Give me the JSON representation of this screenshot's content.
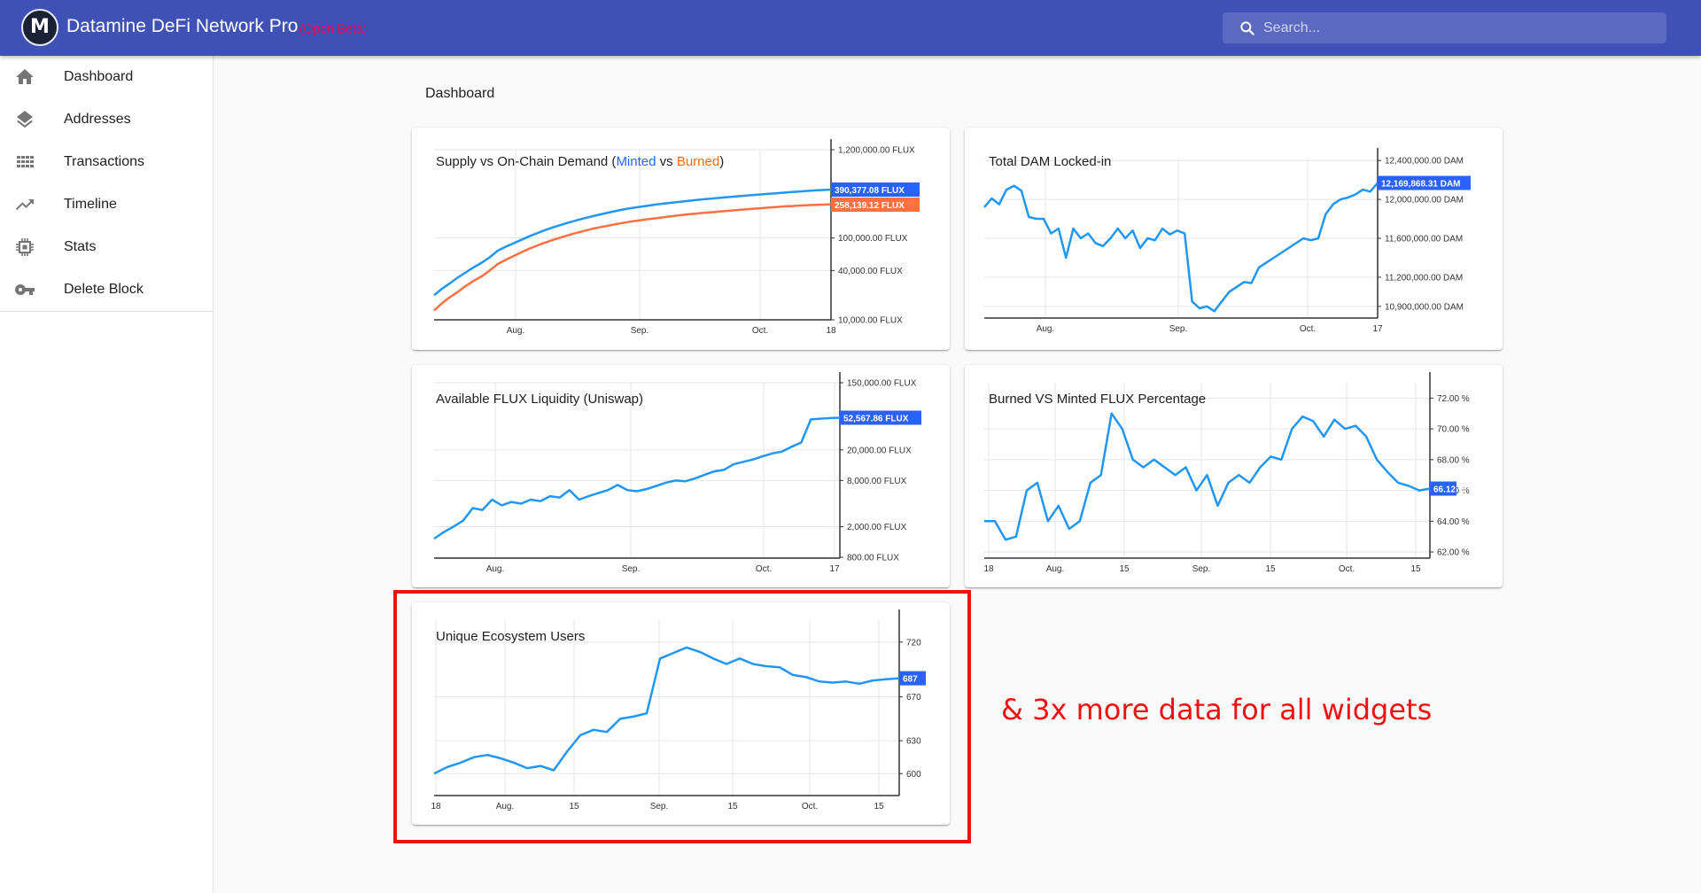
{
  "app": {
    "title": "Datamine DeFi Network Pro",
    "beta": "(Open Beta)",
    "logo": "M"
  },
  "search": {
    "placeholder": "Search..."
  },
  "sidebar": {
    "items": [
      {
        "label": "Dashboard",
        "icon": "home-icon"
      },
      {
        "label": "Addresses",
        "icon": "layers-icon"
      },
      {
        "label": "Transactions",
        "icon": "grid-icon"
      },
      {
        "label": "Timeline",
        "icon": "trending-up-icon"
      },
      {
        "label": "Stats",
        "icon": "chip-icon"
      },
      {
        "label": "Delete Block",
        "icon": "key-icon"
      }
    ]
  },
  "page": {
    "title": "Dashboard"
  },
  "colors": {
    "primary": "#3f51b5",
    "minted": "#2196f3",
    "burned": "#ff7043",
    "label_bg": "#2962ff",
    "beta": "#f50057",
    "highlight": "#ee1111"
  },
  "cards": {
    "supply": {
      "title_prefix": "Supply vs On-Chain Demand (",
      "minted": "Minted",
      "mid": " vs ",
      "burned": "Burned",
      "title_suffix": ")"
    },
    "dam": {
      "title": "Total DAM Locked-in"
    },
    "liquidity": {
      "title": "Available FLUX Liquidity (Uniswap)"
    },
    "ratio": {
      "title": "Burned VS Minted FLUX Percentage"
    },
    "users": {
      "title": "Unique Ecosystem Users"
    }
  },
  "annotation": {
    "text": "& 3x more data for all widgets"
  },
  "chart_data": [
    {
      "type": "line",
      "scale": "log",
      "title": "Supply vs On-Chain Demand (Minted vs Burned)",
      "x_ticks": [
        "Aug.",
        "Sep.",
        "Oct.",
        "18"
      ],
      "y_ticks": [
        "1,200,000.00 FLUX",
        "100,000.00 FLUX",
        "40,000.00 FLUX",
        "10,000.00 FLUX"
      ],
      "series": [
        {
          "name": "Minted",
          "color": "#2196f3",
          "last_label": "390,377.08 FLUX",
          "values": [
            20000,
            24000,
            28000,
            33000,
            38000,
            44000,
            50000,
            58000,
            70000,
            78000,
            86000,
            95000,
            105000,
            115000,
            125000,
            135000,
            145000,
            155000,
            165000,
            175000,
            185000,
            195000,
            205000,
            215000,
            225000,
            233000,
            241000,
            249000,
            257000,
            264000,
            271000,
            278000,
            285000,
            292000,
            298000,
            304000,
            310000,
            316000,
            322000,
            328000,
            334000,
            340000,
            346000,
            352000,
            358000,
            364000,
            370000,
            376000,
            382000,
            386000,
            390377
          ]
        },
        {
          "name": "Burned",
          "color": "#ff7043",
          "last_label": "258,139.12 FLUX",
          "values": [
            13000,
            16000,
            19000,
            22000,
            26000,
            30000,
            34000,
            40000,
            48000,
            54000,
            60000,
            67000,
            74000,
            81000,
            88000,
            95000,
            102000,
            109000,
            116000,
            123000,
            130000,
            136000,
            142000,
            148000,
            154000,
            160000,
            165000,
            170000,
            175000,
            180000,
            185000,
            190000,
            195000,
            199000,
            203000,
            207000,
            211000,
            215000,
            219000,
            223000,
            227000,
            231000,
            235000,
            239000,
            243000,
            246000,
            249000,
            252000,
            254000,
            256000,
            258139
          ]
        }
      ]
    },
    {
      "type": "line",
      "title": "Total DAM Locked-in",
      "x_ticks": [
        "Aug.",
        "Sep.",
        "Oct.",
        "17"
      ],
      "y_ticks": [
        "12,400,000.00 DAM",
        "12,000,000.00 DAM",
        "11,600,000.00 DAM",
        "11,200,000.00 DAM",
        "10,900,000.00 DAM"
      ],
      "last_label": "12,169,868.31 DAM",
      "values": [
        11920000,
        12010000,
        11950000,
        12100000,
        12140000,
        12090000,
        11820000,
        11800000,
        11800000,
        11650000,
        11700000,
        11400000,
        11700000,
        11600000,
        11650000,
        11550000,
        11520000,
        11600000,
        11700000,
        11600000,
        11680000,
        11500000,
        11600000,
        11580000,
        11700000,
        11640000,
        11680000,
        11650000,
        10950000,
        10880000,
        10900000,
        10850000,
        10950000,
        11050000,
        11100000,
        11150000,
        11140000,
        11300000,
        11350000,
        11400000,
        11450000,
        11500000,
        11550000,
        11600000,
        11580000,
        11600000,
        11850000,
        11950000,
        12000000,
        12020000,
        12050000,
        12100000,
        12080000,
        12169868
      ]
    },
    {
      "type": "line",
      "scale": "log",
      "title": "Available FLUX Liquidity (Uniswap)",
      "x_ticks": [
        "Aug.",
        "Sep.",
        "Oct.",
        "17"
      ],
      "y_ticks": [
        "150,000.00 FLUX",
        "20,000.00 FLUX",
        "8,000.00 FLUX",
        "2,000.00 FLUX",
        "800.00 FLUX"
      ],
      "last_label": "52,567.86 FLUX",
      "values": [
        1400,
        1700,
        2000,
        2400,
        3500,
        3300,
        4500,
        3800,
        4200,
        4000,
        4500,
        4300,
        5000,
        4800,
        6000,
        4500,
        5000,
        5500,
        6000,
        7000,
        6000,
        5800,
        6200,
        6800,
        7500,
        8000,
        7800,
        8500,
        9500,
        10500,
        11000,
        13000,
        14000,
        15000,
        16500,
        18000,
        19000,
        22000,
        25000,
        50000,
        51000,
        52000,
        52567
      ]
    },
    {
      "type": "line",
      "title": "Burned VS Minted FLUX Percentage",
      "x_ticks": [
        "18",
        "Aug.",
        "15",
        "Sep.",
        "15",
        "Oct.",
        "15"
      ],
      "y_ticks": [
        "72.00 %",
        "70.00 %",
        "68.00 %",
        "66.00 %",
        "64.00 %",
        "62.00 %"
      ],
      "last_label": "66.12 %",
      "values": [
        64,
        64,
        62.8,
        63,
        66,
        66.5,
        64,
        65,
        63.5,
        64,
        66.5,
        67,
        71,
        70,
        68,
        67.5,
        68,
        67.5,
        67,
        67.5,
        66,
        67,
        65,
        66.5,
        67,
        66.5,
        67.5,
        68.2,
        68,
        70,
        70.8,
        70.5,
        69.5,
        70.6,
        70,
        70.2,
        69.5,
        68,
        67.2,
        66.5,
        66.3,
        66,
        66.12
      ]
    },
    {
      "type": "line",
      "title": "Unique Ecosystem Users",
      "x_ticks": [
        "18",
        "Aug.",
        "15",
        "Sep.",
        "15",
        "Oct.",
        "15"
      ],
      "y_ticks": [
        "720",
        "670",
        "630",
        "600"
      ],
      "last_label": "687",
      "values": [
        600,
        606,
        610,
        615,
        617,
        614,
        610,
        605,
        607,
        603,
        620,
        635,
        640,
        638,
        650,
        652,
        655,
        705,
        710,
        715,
        711,
        705,
        700,
        705,
        700,
        698,
        697,
        690,
        688,
        684,
        683,
        684,
        682,
        685,
        686,
        687
      ]
    }
  ]
}
